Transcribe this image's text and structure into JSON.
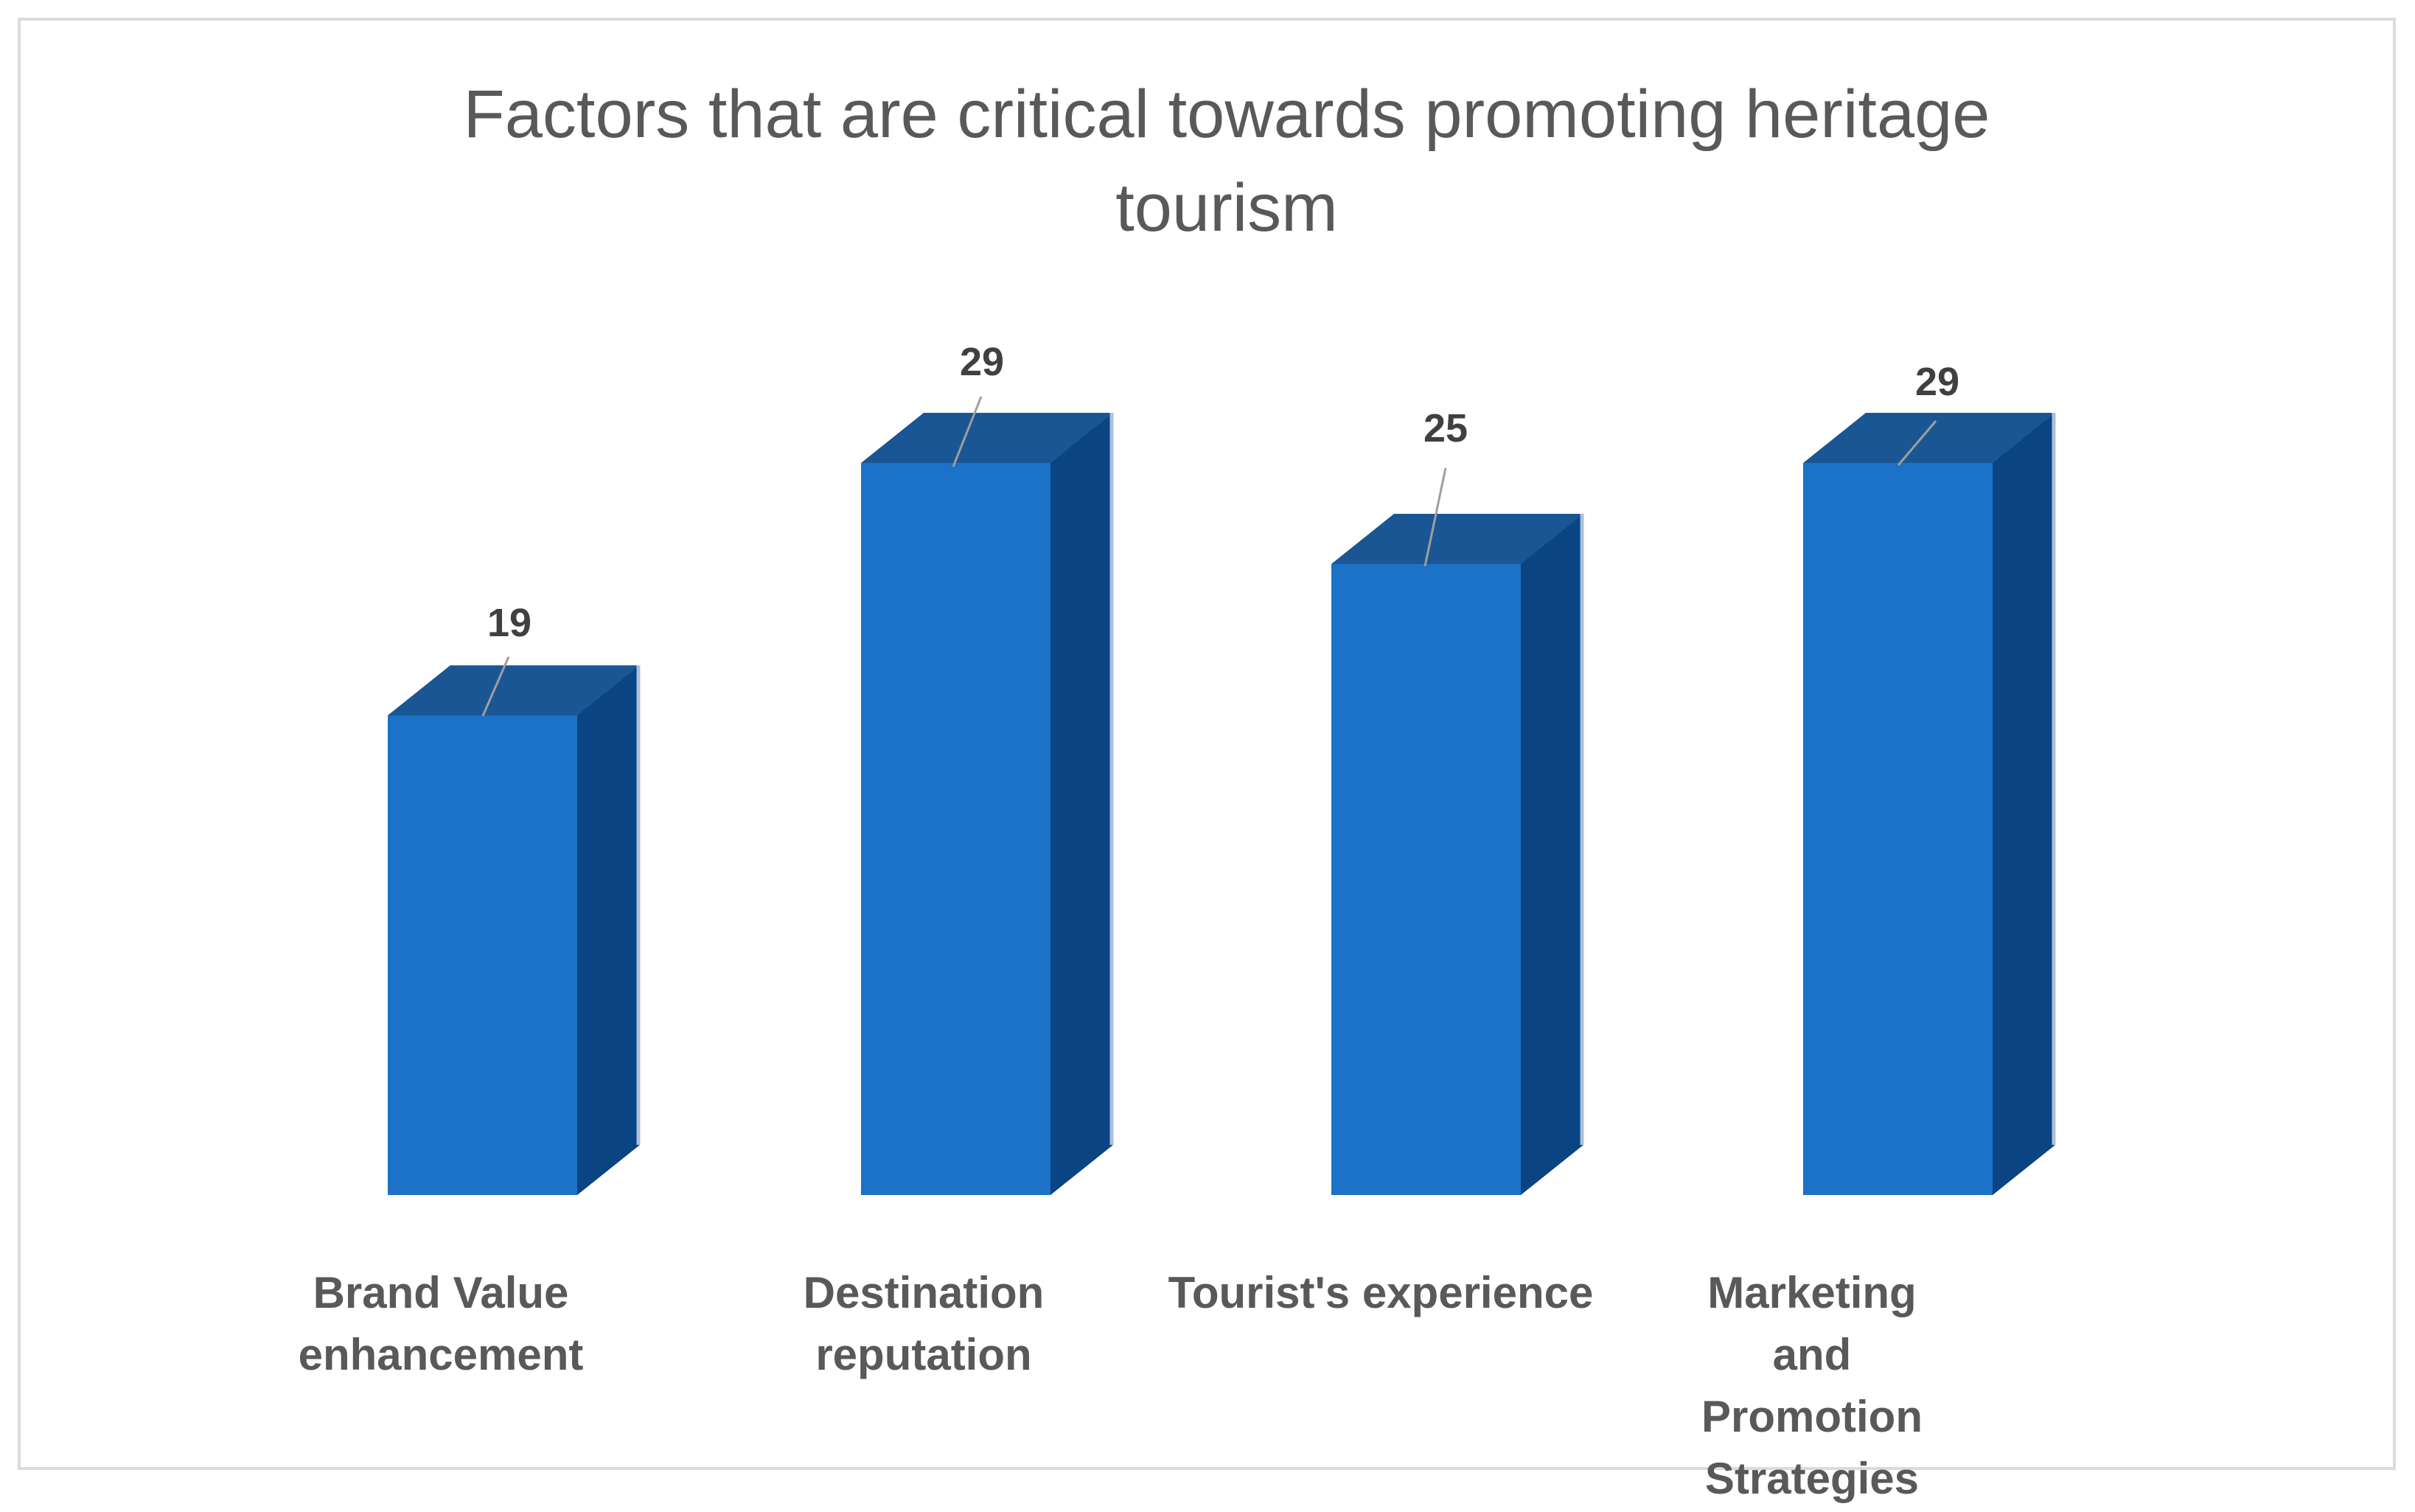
{
  "frame": {
    "border_color": "#DBDBDB",
    "background_color": "#FFFFFF"
  },
  "title": {
    "text": "Factors that are critical towards promoting heritage tourism",
    "lines": [
      "Factors that are critical towards promoting heritage",
      "tourism"
    ],
    "color": "#595959"
  },
  "chart_data": {
    "type": "bar",
    "style": "3d-column",
    "title": "Factors that are critical towards promoting heritage tourism",
    "categories": [
      "Brand Value enhancement",
      "Destination reputation",
      "Tourist's experience",
      "Marketing and Promotion Strategies"
    ],
    "values": [
      19,
      29,
      25,
      29
    ],
    "data_labels_visible": true,
    "xlabel": "",
    "ylabel": "",
    "ylim": [
      0,
      29
    ],
    "axes_visible": false,
    "grid": false,
    "legend": "none",
    "bar_front_color": "#1B72C6",
    "bar_top_color": "#1A5694",
    "bar_side_color": "#0B4483",
    "bar_back_edge_color": "#A9C0DC",
    "leader_line_color": "#9E9E9E",
    "value_label_color": "#404040",
    "category_label_color": "#595959"
  }
}
